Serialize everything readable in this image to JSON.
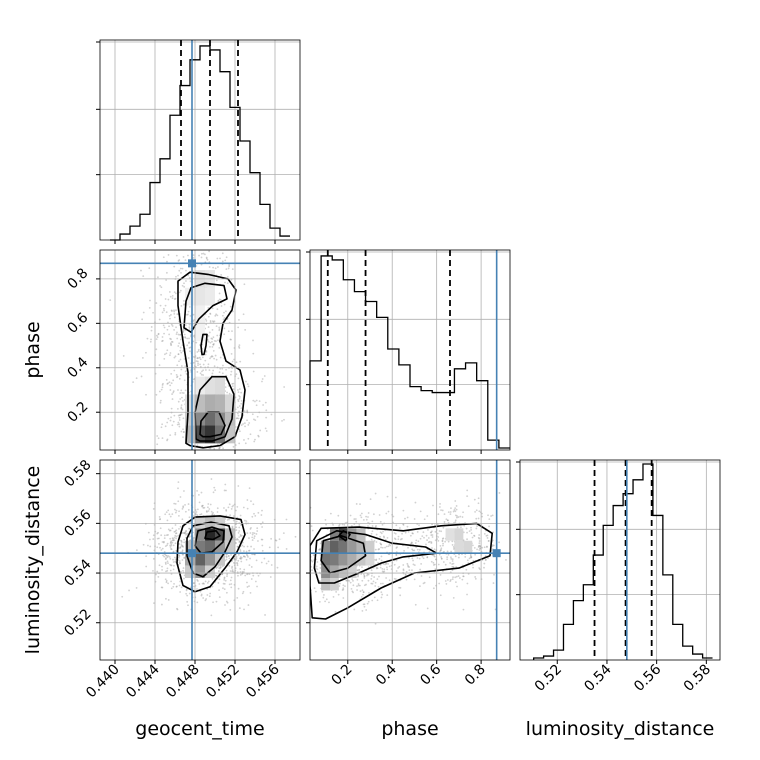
{
  "chart_data": {
    "type": "corner",
    "parameters": [
      "geocent_time",
      "phase",
      "luminosity_distance"
    ],
    "truth_color": "#4682b4",
    "truths": {
      "geocent_time": 0.4477,
      "phase": 0.87,
      "luminosity_distance": 0.548
    },
    "ranges": {
      "geocent_time": [
        0.4385,
        0.4585
      ],
      "phase": [
        0.03,
        0.93
      ],
      "luminosity_distance": [
        0.505,
        0.5855
      ]
    },
    "ticks": {
      "geocent_time": {
        "values": [
          0.44,
          0.444,
          0.448,
          0.452,
          0.456
        ],
        "labels": [
          "0.440",
          "0.444",
          "0.448",
          "0.452",
          "0.456"
        ]
      },
      "phase": {
        "values": [
          0.2,
          0.4,
          0.6,
          0.8
        ],
        "labels": [
          "0.2",
          "0.4",
          "0.6",
          "0.8"
        ]
      },
      "luminosity_distance": {
        "values": [
          0.52,
          0.54,
          0.56,
          0.58
        ],
        "labels": [
          "0.52",
          "0.54",
          "0.56",
          "0.58"
        ]
      }
    },
    "quantiles": {
      "geocent_time": [
        0.4466,
        0.4495,
        0.4523
      ],
      "phase": [
        0.11,
        0.28,
        0.66
      ],
      "luminosity_distance": [
        0.535,
        0.5475,
        0.558
      ]
    },
    "histograms": {
      "geocent_time": {
        "edges": [
          0.4395,
          0.4405,
          0.4415,
          0.4425,
          0.4435,
          0.4445,
          0.4455,
          0.4465,
          0.4475,
          0.4485,
          0.4495,
          0.4505,
          0.4515,
          0.4525,
          0.4535,
          0.4545,
          0.4555,
          0.4565,
          0.4575
        ],
        "counts": [
          0,
          0.03,
          0.07,
          0.13,
          0.29,
          0.41,
          0.63,
          0.78,
          0.91,
          0.98,
          0.96,
          0.85,
          0.67,
          0.5,
          0.34,
          0.18,
          0.06,
          0.02
        ]
      },
      "phase": {
        "edges": [
          0.03,
          0.08,
          0.13,
          0.18,
          0.23,
          0.28,
          0.33,
          0.38,
          0.43,
          0.48,
          0.53,
          0.58,
          0.63,
          0.68,
          0.73,
          0.78,
          0.83,
          0.88,
          0.93
        ],
        "counts": [
          0.45,
          0.98,
          0.96,
          0.86,
          0.8,
          0.75,
          0.67,
          0.51,
          0.43,
          0.32,
          0.3,
          0.29,
          0.29,
          0.41,
          0.44,
          0.35,
          0.05,
          0.01
        ]
      },
      "luminosity_distance": {
        "edges": [
          0.5105,
          0.5145,
          0.5185,
          0.5225,
          0.5265,
          0.5305,
          0.5345,
          0.5385,
          0.5425,
          0.5465,
          0.5505,
          0.5545,
          0.5585,
          0.5625,
          0.5665,
          0.5705,
          0.5745,
          0.5785,
          0.5825
        ],
        "counts": [
          0.01,
          0.02,
          0.05,
          0.18,
          0.3,
          0.38,
          0.53,
          0.68,
          0.78,
          0.84,
          0.91,
          0.99,
          0.73,
          0.43,
          0.18,
          0.07,
          0.03,
          0.01
        ]
      }
    },
    "scatter_clouds": {
      "geocent_time_vs_phase": [
        {
          "x": 0.448,
          "y": 0.61,
          "sx": 0.0021,
          "sy": 0.2,
          "w": 0.45
        },
        {
          "x": 0.45,
          "y": 0.18,
          "sx": 0.0023,
          "sy": 0.1,
          "w": 0.4
        },
        {
          "x": 0.449,
          "y": 0.4,
          "sx": 0.0026,
          "sy": 0.22,
          "w": 0.15
        }
      ],
      "geocent_time_vs_luminosity_distance": [
        {
          "x": 0.4494,
          "y": 0.5505,
          "sx": 0.0027,
          "sy": 0.0095,
          "w": 1.0
        }
      ],
      "phase_vs_luminosity_distance": [
        {
          "x": 0.22,
          "y": 0.546,
          "sx": 0.12,
          "sy": 0.0085,
          "w": 0.55
        },
        {
          "x": 0.7,
          "y": 0.551,
          "sx": 0.1,
          "sy": 0.0075,
          "w": 0.3
        },
        {
          "x": 0.45,
          "y": 0.548,
          "sx": 0.14,
          "sy": 0.008,
          "w": 0.15
        }
      ]
    },
    "density_cells": {
      "geocent_time_vs_phase": [
        {
          "x": 0.4485,
          "y": 0.8,
          "v": 0.12
        },
        {
          "x": 0.4495,
          "y": 0.8,
          "v": 0.1
        },
        {
          "x": 0.4485,
          "y": 0.72,
          "v": 0.1
        },
        {
          "x": 0.4495,
          "y": 0.72,
          "v": 0.08
        },
        {
          "x": 0.4475,
          "y": 0.72,
          "v": 0.06
        },
        {
          "x": 0.4485,
          "y": 0.64,
          "v": 0.06
        },
        {
          "x": 0.4485,
          "y": 0.56,
          "v": 0.05
        },
        {
          "x": 0.4495,
          "y": 0.32,
          "v": 0.12
        },
        {
          "x": 0.4505,
          "y": 0.32,
          "v": 0.14
        },
        {
          "x": 0.4485,
          "y": 0.32,
          "v": 0.08
        },
        {
          "x": 0.4485,
          "y": 0.24,
          "v": 0.26
        },
        {
          "x": 0.4495,
          "y": 0.24,
          "v": 0.32
        },
        {
          "x": 0.4505,
          "y": 0.24,
          "v": 0.3
        },
        {
          "x": 0.4515,
          "y": 0.24,
          "v": 0.16
        },
        {
          "x": 0.4475,
          "y": 0.24,
          "v": 0.12
        },
        {
          "x": 0.4485,
          "y": 0.16,
          "v": 0.46
        },
        {
          "x": 0.4495,
          "y": 0.16,
          "v": 0.58
        },
        {
          "x": 0.4505,
          "y": 0.16,
          "v": 0.46
        },
        {
          "x": 0.4515,
          "y": 0.16,
          "v": 0.26
        },
        {
          "x": 0.4475,
          "y": 0.16,
          "v": 0.2
        },
        {
          "x": 0.4485,
          "y": 0.1,
          "v": 0.7
        },
        {
          "x": 0.4495,
          "y": 0.1,
          "v": 0.8
        },
        {
          "x": 0.4505,
          "y": 0.1,
          "v": 0.56
        },
        {
          "x": 0.4475,
          "y": 0.1,
          "v": 0.28
        },
        {
          "x": 0.4515,
          "y": 0.1,
          "v": 0.22
        }
      ],
      "geocent_time_vs_luminosity_distance": [
        {
          "x": 0.4495,
          "y": 0.5555,
          "v": 0.85
        },
        {
          "x": 0.4505,
          "y": 0.5555,
          "v": 0.7
        },
        {
          "x": 0.4485,
          "y": 0.5555,
          "v": 0.45
        },
        {
          "x": 0.4515,
          "y": 0.5555,
          "v": 0.25
        },
        {
          "x": 0.4495,
          "y": 0.5505,
          "v": 0.58
        },
        {
          "x": 0.4485,
          "y": 0.5505,
          "v": 0.52
        },
        {
          "x": 0.4505,
          "y": 0.5505,
          "v": 0.4
        },
        {
          "x": 0.4475,
          "y": 0.5505,
          "v": 0.25
        },
        {
          "x": 0.4515,
          "y": 0.5505,
          "v": 0.2
        },
        {
          "x": 0.4485,
          "y": 0.5455,
          "v": 0.62
        },
        {
          "x": 0.4495,
          "y": 0.5455,
          "v": 0.42
        },
        {
          "x": 0.4475,
          "y": 0.5455,
          "v": 0.34
        },
        {
          "x": 0.4505,
          "y": 0.5455,
          "v": 0.22
        },
        {
          "x": 0.4485,
          "y": 0.5405,
          "v": 0.4
        },
        {
          "x": 0.4475,
          "y": 0.5405,
          "v": 0.2
        },
        {
          "x": 0.4495,
          "y": 0.5405,
          "v": 0.18
        },
        {
          "x": 0.4495,
          "y": 0.5605,
          "v": 0.25
        },
        {
          "x": 0.4485,
          "y": 0.5605,
          "v": 0.18
        },
        {
          "x": 0.4505,
          "y": 0.5605,
          "v": 0.18
        }
      ],
      "phase_vs_luminosity_distance": [
        {
          "x": 0.14,
          "y": 0.5555,
          "v": 0.5
        },
        {
          "x": 0.18,
          "y": 0.5555,
          "v": 0.75
        },
        {
          "x": 0.22,
          "y": 0.5555,
          "v": 0.4
        },
        {
          "x": 0.26,
          "y": 0.5555,
          "v": 0.25
        },
        {
          "x": 0.1,
          "y": 0.5505,
          "v": 0.45
        },
        {
          "x": 0.14,
          "y": 0.5505,
          "v": 0.62
        },
        {
          "x": 0.18,
          "y": 0.5505,
          "v": 0.55
        },
        {
          "x": 0.22,
          "y": 0.5505,
          "v": 0.4
        },
        {
          "x": 0.26,
          "y": 0.5505,
          "v": 0.3
        },
        {
          "x": 0.3,
          "y": 0.5505,
          "v": 0.2
        },
        {
          "x": 0.1,
          "y": 0.5455,
          "v": 0.55
        },
        {
          "x": 0.14,
          "y": 0.5455,
          "v": 0.52
        },
        {
          "x": 0.18,
          "y": 0.5455,
          "v": 0.42
        },
        {
          "x": 0.22,
          "y": 0.5455,
          "v": 0.32
        },
        {
          "x": 0.26,
          "y": 0.5455,
          "v": 0.22
        },
        {
          "x": 0.3,
          "y": 0.5455,
          "v": 0.15
        },
        {
          "x": 0.1,
          "y": 0.5405,
          "v": 0.45
        },
        {
          "x": 0.14,
          "y": 0.5405,
          "v": 0.35
        },
        {
          "x": 0.18,
          "y": 0.5405,
          "v": 0.25
        },
        {
          "x": 0.22,
          "y": 0.5405,
          "v": 0.18
        },
        {
          "x": 0.1,
          "y": 0.5355,
          "v": 0.25
        },
        {
          "x": 0.14,
          "y": 0.5355,
          "v": 0.18
        },
        {
          "x": 0.66,
          "y": 0.5555,
          "v": 0.12
        },
        {
          "x": 0.7,
          "y": 0.5555,
          "v": 0.16
        },
        {
          "x": 0.74,
          "y": 0.5505,
          "v": 0.16
        },
        {
          "x": 0.7,
          "y": 0.5505,
          "v": 0.14
        }
      ]
    },
    "contours": {
      "geocent_time_vs_phase": [
        [
          [
            0.4471,
            0.06
          ],
          [
            0.4473,
            0.2
          ],
          [
            0.4473,
            0.38
          ],
          [
            0.4468,
            0.52
          ],
          [
            0.4463,
            0.68
          ],
          [
            0.4463,
            0.79
          ],
          [
            0.4475,
            0.83
          ],
          [
            0.4493,
            0.82
          ],
          [
            0.4513,
            0.8
          ],
          [
            0.4521,
            0.75
          ],
          [
            0.4517,
            0.66
          ],
          [
            0.4508,
            0.6
          ],
          [
            0.4505,
            0.52
          ],
          [
            0.4511,
            0.43
          ],
          [
            0.4525,
            0.39
          ],
          [
            0.453,
            0.3
          ],
          [
            0.4527,
            0.18
          ],
          [
            0.452,
            0.09
          ],
          [
            0.4505,
            0.05
          ],
          [
            0.4488,
            0.04
          ],
          [
            0.4475,
            0.05
          ],
          [
            0.4471,
            0.06
          ]
        ],
        [
          [
            0.4469,
            0.58
          ],
          [
            0.4471,
            0.7
          ],
          [
            0.4476,
            0.76
          ],
          [
            0.449,
            0.78
          ],
          [
            0.4509,
            0.77
          ],
          [
            0.4512,
            0.71
          ],
          [
            0.4498,
            0.68
          ],
          [
            0.4484,
            0.62
          ],
          [
            0.4476,
            0.56
          ],
          [
            0.4469,
            0.58
          ]
        ],
        [
          [
            0.4487,
            0.46
          ],
          [
            0.4486,
            0.5
          ],
          [
            0.4488,
            0.55
          ],
          [
            0.4492,
            0.55
          ],
          [
            0.4491,
            0.5
          ],
          [
            0.4489,
            0.46
          ],
          [
            0.4487,
            0.46
          ]
        ],
        [
          [
            0.4481,
            0.08
          ],
          [
            0.448,
            0.2
          ],
          [
            0.4485,
            0.3
          ],
          [
            0.4497,
            0.36
          ],
          [
            0.4511,
            0.36
          ],
          [
            0.4519,
            0.28
          ],
          [
            0.4517,
            0.17
          ],
          [
            0.451,
            0.09
          ],
          [
            0.4497,
            0.07
          ],
          [
            0.4485,
            0.07
          ],
          [
            0.4481,
            0.08
          ]
        ],
        [
          [
            0.4485,
            0.1
          ],
          [
            0.4486,
            0.16
          ],
          [
            0.4493,
            0.2
          ],
          [
            0.4504,
            0.2
          ],
          [
            0.451,
            0.14
          ],
          [
            0.4506,
            0.1
          ],
          [
            0.4495,
            0.09
          ],
          [
            0.4488,
            0.09
          ],
          [
            0.4485,
            0.1
          ]
        ]
      ],
      "geocent_time_vs_luminosity_distance": [
        [
          [
            0.4462,
            0.544
          ],
          [
            0.4463,
            0.5525
          ],
          [
            0.4468,
            0.559
          ],
          [
            0.448,
            0.5625
          ],
          [
            0.4505,
            0.563
          ],
          [
            0.4526,
            0.5615
          ],
          [
            0.453,
            0.5555
          ],
          [
            0.4522,
            0.5485
          ],
          [
            0.451,
            0.542
          ],
          [
            0.4495,
            0.5345
          ],
          [
            0.448,
            0.5325
          ],
          [
            0.4468,
            0.535
          ],
          [
            0.4462,
            0.544
          ]
        ],
        [
          [
            0.4472,
            0.547
          ],
          [
            0.4472,
            0.554
          ],
          [
            0.4478,
            0.559
          ],
          [
            0.4496,
            0.5605
          ],
          [
            0.4514,
            0.559
          ],
          [
            0.4517,
            0.5545
          ],
          [
            0.451,
            0.5485
          ],
          [
            0.45,
            0.5425
          ],
          [
            0.4488,
            0.5385
          ],
          [
            0.4478,
            0.54
          ],
          [
            0.4472,
            0.547
          ]
        ],
        [
          [
            0.448,
            0.551
          ],
          [
            0.4483,
            0.557
          ],
          [
            0.4497,
            0.5585
          ],
          [
            0.4509,
            0.557
          ],
          [
            0.4508,
            0.5525
          ],
          [
            0.4497,
            0.5485
          ],
          [
            0.4486,
            0.548
          ],
          [
            0.448,
            0.551
          ]
        ],
        [
          [
            0.449,
            0.554
          ],
          [
            0.4492,
            0.5565
          ],
          [
            0.4501,
            0.557
          ],
          [
            0.4505,
            0.555
          ],
          [
            0.4498,
            0.5535
          ],
          [
            0.449,
            0.554
          ]
        ]
      ],
      "phase_vs_luminosity_distance": [
        [
          [
            0.03,
            0.535
          ],
          [
            0.03,
            0.551
          ],
          [
            0.08,
            0.558
          ],
          [
            0.25,
            0.5585
          ],
          [
            0.45,
            0.557
          ],
          [
            0.62,
            0.559
          ],
          [
            0.78,
            0.56
          ],
          [
            0.85,
            0.556
          ],
          [
            0.84,
            0.547
          ],
          [
            0.7,
            0.542
          ],
          [
            0.5,
            0.54
          ],
          [
            0.35,
            0.534
          ],
          [
            0.2,
            0.526
          ],
          [
            0.1,
            0.5215
          ],
          [
            0.04,
            0.522
          ],
          [
            0.03,
            0.535
          ]
        ],
        [
          [
            0.05,
            0.542
          ],
          [
            0.06,
            0.553
          ],
          [
            0.15,
            0.557
          ],
          [
            0.28,
            0.5555
          ],
          [
            0.4,
            0.552
          ],
          [
            0.55,
            0.5505
          ],
          [
            0.6,
            0.548
          ],
          [
            0.45,
            0.5465
          ],
          [
            0.35,
            0.544
          ],
          [
            0.25,
            0.54
          ],
          [
            0.14,
            0.536
          ],
          [
            0.07,
            0.536
          ],
          [
            0.05,
            0.542
          ]
        ],
        [
          [
            0.08,
            0.545
          ],
          [
            0.09,
            0.553
          ],
          [
            0.17,
            0.555
          ],
          [
            0.27,
            0.552
          ],
          [
            0.28,
            0.547
          ],
          [
            0.2,
            0.542
          ],
          [
            0.12,
            0.54
          ],
          [
            0.08,
            0.545
          ]
        ],
        [
          [
            0.16,
            0.555
          ],
          [
            0.18,
            0.557
          ],
          [
            0.21,
            0.5555
          ],
          [
            0.19,
            0.553
          ],
          [
            0.16,
            0.555
          ]
        ]
      ]
    }
  },
  "axes_labels": {
    "geocent_time": "geocent_time",
    "phase": "phase",
    "luminosity_distance": "luminosity_distance"
  }
}
